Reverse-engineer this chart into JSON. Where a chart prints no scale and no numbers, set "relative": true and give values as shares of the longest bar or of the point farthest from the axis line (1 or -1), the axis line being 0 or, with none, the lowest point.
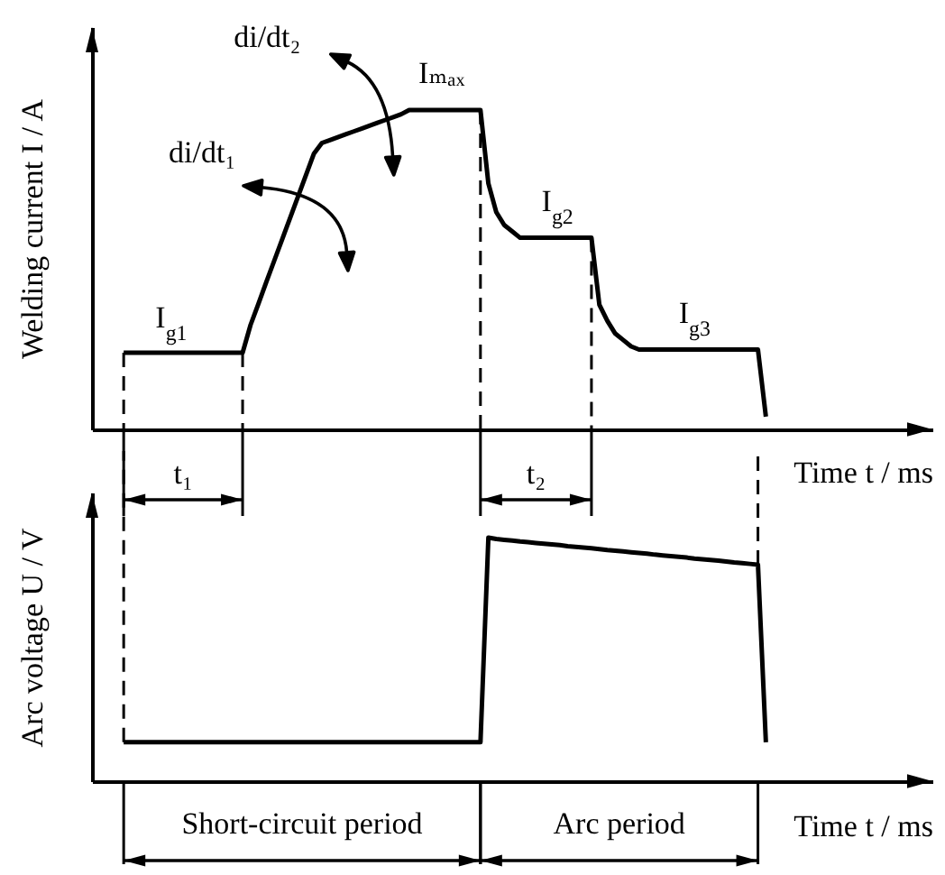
{
  "chart_data": [
    {
      "type": "line",
      "relative": true,
      "ylabel": "Welding current I / A",
      "xlabel": "Time t / ms",
      "categories": [
        null,
        null,
        null,
        null,
        null,
        null,
        null,
        null,
        null,
        null,
        null,
        null,
        null,
        null,
        null,
        null,
        null,
        null,
        null,
        null,
        null,
        null,
        null,
        null,
        null,
        null,
        null,
        null,
        null,
        null,
        null,
        null,
        null,
        null,
        null,
        null,
        null,
        null,
        null,
        null,
        null,
        null,
        null,
        null,
        null,
        null,
        null,
        null,
        null,
        null,
        null,
        null,
        null,
        null,
        null,
        null,
        null,
        null,
        null,
        null,
        null,
        null,
        null,
        null,
        null,
        null,
        null,
        null,
        null,
        null,
        null,
        null,
        null,
        null,
        null,
        null,
        null,
        null,
        null,
        null,
        null,
        null,
        null,
        null,
        null,
        null,
        null,
        null,
        null,
        null,
        null,
        null,
        null,
        null,
        null,
        null,
        null,
        null,
        null,
        null,
        null,
        null,
        null,
        null,
        null,
        null,
        null
      ],
      "series": [
        {
          "color": "#000000",
          "values": [
            null,
            null,
            null,
            null,
            0.24,
            0.24,
            0.24,
            0.24,
            0.24,
            0.24,
            0.24,
            0.24,
            0.24,
            0.24,
            0.24,
            0.24,
            0.24,
            0.24,
            0.24,
            0.24,
            0.327,
            0.394,
            0.462,
            0.529,
            0.596,
            0.663,
            0.73,
            0.797,
            0.864,
            0.897,
            0.906,
            0.915,
            0.924,
            0.933,
            0.942,
            0.951,
            0.96,
            0.969,
            0.978,
            0.987,
            1,
            1,
            1,
            1,
            1,
            1,
            1,
            1,
            1,
            1,
            0.77,
            0.68,
            0.64,
            0.62,
            0.6,
            0.6,
            0.6,
            0.6,
            0.6,
            0.6,
            0.6,
            0.6,
            0.6,
            0.6,
            0.39,
            0.34,
            0.3,
            0.28,
            0.26,
            0.25,
            0.25,
            0.25,
            0.25,
            0.25,
            0.25,
            0.25,
            0.25,
            0.25,
            0.25,
            0.25,
            0.25,
            0.25,
            0.25,
            0.25,
            0.25,
            0.04,
            null,
            null,
            null,
            null,
            null,
            null,
            null,
            null,
            null,
            null,
            null,
            null,
            null,
            null,
            null,
            null,
            null,
            null,
            null,
            null,
            null
          ]
        }
      ],
      "annotations": [
        {
          "text": "I$_{g1}$",
          "y": 0.24
        },
        "di/dt₁",
        "di/dt₂",
        {
          "text": "Iₘₐₓ",
          "y": 1
        },
        {
          "text": "I$_{g2}$",
          "y": 0.6
        },
        {
          "text": "I$_{g3}$",
          "y": 0.25
        },
        "t₁",
        "t₂"
      ]
    },
    {
      "type": "line",
      "relative": true,
      "ylabel": "Arc voltage U / V",
      "xlabel": "Time t / ms",
      "categories": [
        null,
        null,
        null,
        null,
        null,
        null,
        null,
        null,
        null,
        null,
        null,
        null,
        null,
        null,
        null,
        null,
        null,
        null,
        null,
        null,
        null,
        null,
        null,
        null,
        null,
        null,
        null,
        null,
        null,
        null,
        null,
        null,
        null,
        null,
        null,
        null,
        null,
        null,
        null,
        null,
        null,
        null,
        null,
        null,
        null,
        null,
        null,
        null,
        null,
        null,
        null,
        null,
        null,
        null,
        null,
        null,
        null,
        null,
        null,
        null,
        null,
        null,
        null,
        null,
        null,
        null,
        null,
        null,
        null,
        null,
        null,
        null,
        null,
        null,
        null,
        null,
        null,
        null,
        null,
        null,
        null,
        null,
        null,
        null,
        null,
        null,
        null,
        null,
        null,
        null,
        null,
        null,
        null,
        null,
        null,
        null,
        null,
        null,
        null,
        null,
        null,
        null,
        null,
        null,
        null,
        null,
        null
      ],
      "series": [
        {
          "color": "#000000",
          "values": [
            null,
            null,
            null,
            null,
            0.16,
            0.16,
            0.16,
            0.16,
            0.16,
            0.16,
            0.16,
            0.16,
            0.16,
            0.16,
            0.16,
            0.16,
            0.16,
            0.16,
            0.16,
            0.16,
            0.16,
            0.16,
            0.16,
            0.16,
            0.16,
            0.16,
            0.16,
            0.16,
            0.16,
            0.16,
            0.16,
            0.16,
            0.16,
            0.16,
            0.16,
            0.16,
            0.16,
            0.16,
            0.16,
            0.16,
            0.16,
            0.16,
            0.16,
            0.16,
            0.16,
            0.16,
            0.16,
            0.16,
            0.16,
            0.16,
            1,
            0.994,
            0.991,
            0.988,
            0.984,
            0.981,
            0.978,
            0.975,
            0.972,
            0.969,
            0.965,
            0.962,
            0.959,
            0.956,
            0.953,
            0.949,
            0.946,
            0.943,
            0.94,
            0.937,
            0.934,
            0.93,
            0.927,
            0.924,
            0.921,
            0.918,
            0.914,
            0.911,
            0.908,
            0.905,
            0.902,
            0.898,
            0.895,
            0.892,
            0.889,
            0.16,
            null,
            null,
            null,
            null,
            null,
            null,
            null,
            null,
            null,
            null,
            null,
            null,
            null,
            null,
            null,
            null,
            null,
            null,
            null,
            null,
            null
          ]
        }
      ],
      "annotations": [
        "Short-circuit period",
        "Arc period"
      ]
    }
  ]
}
